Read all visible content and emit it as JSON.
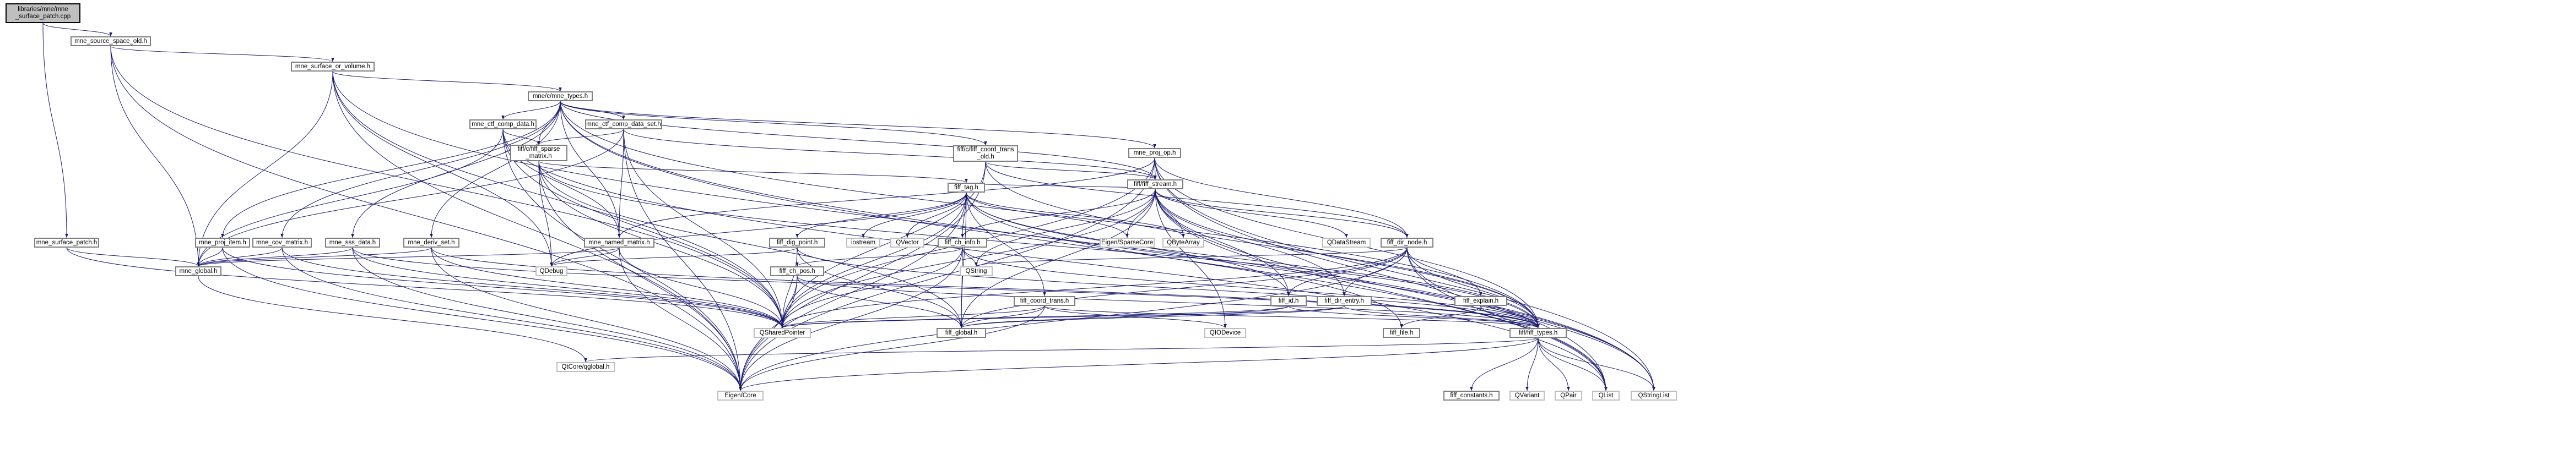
{
  "nodes": {
    "root": {
      "label": "libraries/mne/mne\n_surface_patch.cpp",
      "link": false
    },
    "srcSpace": {
      "label": "mne_source_space_old.h",
      "link": true
    },
    "surfVol": {
      "label": "mne_surface_or_volume.h",
      "link": true
    },
    "mneTypes": {
      "label": "mne/c/mne_types.h",
      "link": true
    },
    "surfPatch": {
      "label": "mne_surface_patch.h",
      "link": true
    },
    "ctfCompData": {
      "label": "mne_ctf_comp_data.h",
      "link": true
    },
    "ctfCompSet": {
      "label": "mne_ctf_comp_data_set.h",
      "link": true
    },
    "coordTrans": {
      "label": "fiff/c/fiff_coord_trans\n_old.h",
      "link": true
    },
    "projOp": {
      "label": "mne_proj_op.h",
      "link": true
    },
    "sparseMatrix": {
      "label": "fiff/c/fiff_sparse\n_matrix.h",
      "link": true
    },
    "fiffStream": {
      "label": "fiff/fiff_stream.h",
      "link": true
    },
    "fiffTag": {
      "label": "fiff_tag.h",
      "link": true
    },
    "projItem": {
      "label": "mne_proj_item.h",
      "link": true
    },
    "covMatrix": {
      "label": "mne_cov_matrix.h",
      "link": true
    },
    "sssData": {
      "label": "mne_sss_data.h",
      "link": true
    },
    "derivSet": {
      "label": "mne_deriv_set.h",
      "link": true
    },
    "namedMatrix": {
      "label": "mne_named_matrix.h",
      "link": true
    },
    "digPoint": {
      "label": "fiff_dig_point.h",
      "link": true
    },
    "iostream": {
      "label": "iostream",
      "link": false
    },
    "qvector": {
      "label": "QVector",
      "link": false
    },
    "chInfo": {
      "label": "fiff_ch_info.h",
      "link": true
    },
    "coordTrans2": {
      "label": "fiff_coord_trans.h",
      "link": true
    },
    "eigenSparse": {
      "label": "Eigen/SparseCore",
      "link": false
    },
    "qbytearray": {
      "label": "QByteArray",
      "link": false
    },
    "qdatastream": {
      "label": "QDataStream",
      "link": false
    },
    "dirNode": {
      "label": "fiff_dir_node.h",
      "link": true
    },
    "mneGlobal": {
      "label": "mne_global.h",
      "link": true
    },
    "qdebug": {
      "label": "QDebug",
      "link": false
    },
    "chPos": {
      "label": "fiff_ch_pos.h",
      "link": true
    },
    "qstring": {
      "label": "QString",
      "link": false
    },
    "fiffId": {
      "label": "fiff_id.h",
      "link": true
    },
    "dirEntry": {
      "label": "fiff_dir_entry.h",
      "link": true
    },
    "explain": {
      "label": "fiff_explain.h",
      "link": true
    },
    "qshared": {
      "label": "QSharedPointer",
      "link": false
    },
    "fiffGlobal": {
      "label": "fiff_global.h",
      "link": true
    },
    "qiodevice": {
      "label": "QIODevice",
      "link": false
    },
    "fiffFile": {
      "label": "fiff_file.h",
      "link": true
    },
    "fiffTypes": {
      "label": "fiff/fiff_types.h",
      "link": true
    },
    "qtconfig": {
      "label": "QtCore/qglobal.h",
      "link": false
    },
    "eigenCore": {
      "label": "Eigen/Core",
      "link": false
    },
    "constants": {
      "label": "fiff_constants.h",
      "link": true
    },
    "qvariant": {
      "label": "QVariant",
      "link": false
    },
    "qpair": {
      "label": "QPair",
      "link": false
    },
    "qlist": {
      "label": "QList",
      "link": false
    },
    "qstringlist": {
      "label": "QStringList",
      "link": false
    }
  },
  "edge_color": "#191970",
  "edges": [
    [
      "root",
      "srcSpace"
    ],
    [
      "root",
      "surfPatch"
    ],
    [
      "srcSpace",
      "surfVol"
    ],
    [
      "srcSpace",
      "mneGlobal"
    ],
    [
      "srcSpace",
      "qshared"
    ],
    [
      "srcSpace",
      "eigenCore"
    ],
    [
      "surfVol",
      "mneTypes"
    ],
    [
      "surfVol",
      "mneGlobal"
    ],
    [
      "surfVol",
      "qdebug"
    ],
    [
      "surfVol",
      "qshared"
    ],
    [
      "surfVol",
      "eigenCore"
    ],
    [
      "surfVol",
      "qstringlist"
    ],
    [
      "mneTypes",
      "ctfCompData"
    ],
    [
      "mneTypes",
      "ctfCompSet"
    ],
    [
      "mneTypes",
      "coordTrans"
    ],
    [
      "mneTypes",
      "projOp"
    ],
    [
      "mneTypes",
      "sparseMatrix"
    ],
    [
      "mneTypes",
      "fiffStream"
    ],
    [
      "mneTypes",
      "projItem"
    ],
    [
      "mneTypes",
      "covMatrix"
    ],
    [
      "mneTypes",
      "sssData"
    ],
    [
      "mneTypes",
      "derivSet"
    ],
    [
      "mneTypes",
      "namedMatrix"
    ],
    [
      "mneTypes",
      "fiffTypes"
    ],
    [
      "mneTypes",
      "qlist"
    ],
    [
      "mneTypes",
      "qstringlist"
    ],
    [
      "surfPatch",
      "mneGlobal"
    ],
    [
      "surfPatch",
      "qshared"
    ],
    [
      "ctfCompData",
      "sparseMatrix"
    ],
    [
      "ctfCompData",
      "namedMatrix"
    ],
    [
      "ctfCompData",
      "mneGlobal"
    ],
    [
      "ctfCompData",
      "qshared"
    ],
    [
      "ctfCompData",
      "eigenCore"
    ],
    [
      "ctfCompData",
      "qlist"
    ],
    [
      "ctfCompSet",
      "sparseMatrix"
    ],
    [
      "ctfCompSet",
      "namedMatrix"
    ],
    [
      "ctfCompSet",
      "fiffStream"
    ],
    [
      "ctfCompSet",
      "mneGlobal"
    ],
    [
      "ctfCompSet",
      "qshared"
    ],
    [
      "ctfCompSet",
      "eigenCore"
    ],
    [
      "coordTrans",
      "fiffStream"
    ],
    [
      "coordTrans",
      "fiffTypes"
    ],
    [
      "coordTrans",
      "qshared"
    ],
    [
      "coordTrans",
      "eigenCore"
    ],
    [
      "coordTrans",
      "dirNode"
    ],
    [
      "projOp",
      "fiffStream"
    ],
    [
      "projOp",
      "namedMatrix"
    ],
    [
      "projOp",
      "fiffTypes"
    ],
    [
      "projOp",
      "qshared"
    ],
    [
      "projOp",
      "eigenCore"
    ],
    [
      "projOp",
      "qlist"
    ],
    [
      "projOp",
      "qstringlist"
    ],
    [
      "projOp",
      "dirNode"
    ],
    [
      "sparseMatrix",
      "fiffTag"
    ],
    [
      "sparseMatrix",
      "fiffTypes"
    ],
    [
      "sparseMatrix",
      "qdebug"
    ],
    [
      "sparseMatrix",
      "qshared"
    ],
    [
      "sparseMatrix",
      "eigenCore"
    ],
    [
      "sparseMatrix",
      "fiffGlobal"
    ],
    [
      "fiffStream",
      "fiffTag"
    ],
    [
      "fiffStream",
      "dirNode"
    ],
    [
      "fiffStream",
      "qdatastream"
    ],
    [
      "fiffStream",
      "qbytearray"
    ],
    [
      "fiffStream",
      "fiffId"
    ],
    [
      "fiffStream",
      "dirEntry"
    ],
    [
      "fiffStream",
      "fiffTypes"
    ],
    [
      "fiffStream",
      "qshared"
    ],
    [
      "fiffStream",
      "qiodevice"
    ],
    [
      "fiffStream",
      "qlist"
    ],
    [
      "fiffStream",
      "qstringlist"
    ],
    [
      "fiffStream",
      "qstring"
    ],
    [
      "fiffStream",
      "fiffGlobal"
    ],
    [
      "fiffStream",
      "eigenSparse"
    ],
    [
      "fiffStream",
      "chInfo"
    ],
    [
      "fiffTag",
      "digPoint"
    ],
    [
      "fiffTag",
      "iostream"
    ],
    [
      "fiffTag",
      "qvector"
    ],
    [
      "fiffTag",
      "chInfo"
    ],
    [
      "fiffTag",
      "coordTrans2"
    ],
    [
      "fiffTag",
      "eigenSparse"
    ],
    [
      "fiffTag",
      "qbytearray"
    ],
    [
      "fiffTag",
      "fiffId"
    ],
    [
      "fiffTag",
      "fiffTypes"
    ],
    [
      "fiffTag",
      "qshared"
    ],
    [
      "fiffTag",
      "fiffGlobal"
    ],
    [
      "fiffTag",
      "fiffFile"
    ],
    [
      "fiffTag",
      "qdebug"
    ],
    [
      "fiffTag",
      "eigenCore"
    ],
    [
      "projItem",
      "mneGlobal"
    ],
    [
      "projItem",
      "qshared"
    ],
    [
      "projItem",
      "eigenCore"
    ],
    [
      "covMatrix",
      "mneGlobal"
    ],
    [
      "covMatrix",
      "qshared"
    ],
    [
      "covMatrix",
      "eigenCore"
    ],
    [
      "sssData",
      "mneGlobal"
    ],
    [
      "sssData",
      "qshared"
    ],
    [
      "sssData",
      "eigenCore"
    ],
    [
      "sssData",
      "fiffTypes"
    ],
    [
      "derivSet",
      "mneGlobal"
    ],
    [
      "derivSet",
      "qshared"
    ],
    [
      "derivSet",
      "eigenCore"
    ],
    [
      "derivSet",
      "fiffTypes"
    ],
    [
      "namedMatrix",
      "mneGlobal"
    ],
    [
      "namedMatrix",
      "qdebug"
    ],
    [
      "namedMatrix",
      "qshared"
    ],
    [
      "namedMatrix",
      "eigenCore"
    ],
    [
      "digPoint",
      "fiffGlobal"
    ],
    [
      "digPoint",
      "fiffTypes"
    ],
    [
      "digPoint",
      "qshared"
    ],
    [
      "digPoint",
      "qdebug"
    ],
    [
      "chInfo",
      "chPos"
    ],
    [
      "chInfo",
      "qstring"
    ],
    [
      "chInfo",
      "fiffGlobal"
    ],
    [
      "chInfo",
      "fiffTypes"
    ],
    [
      "chInfo",
      "qshared"
    ],
    [
      "chInfo",
      "eigenCore"
    ],
    [
      "coordTrans2",
      "fiffGlobal"
    ],
    [
      "coordTrans2",
      "fiffTypes"
    ],
    [
      "coordTrans2",
      "qshared"
    ],
    [
      "coordTrans2",
      "eigenCore"
    ],
    [
      "coordTrans2",
      "qiodevice"
    ],
    [
      "dirNode",
      "fiffId"
    ],
    [
      "dirNode",
      "dirEntry"
    ],
    [
      "dirNode",
      "explain"
    ],
    [
      "dirNode",
      "fiffTypes"
    ],
    [
      "dirNode",
      "fiffGlobal"
    ],
    [
      "dirNode",
      "qshared"
    ],
    [
      "dirNode",
      "qlist"
    ],
    [
      "dirNode",
      "qstringlist"
    ],
    [
      "dirNode",
      "eigenCore"
    ],
    [
      "dirNode",
      "qstring"
    ],
    [
      "mneGlobal",
      "qtconfig"
    ],
    [
      "chPos",
      "fiffGlobal"
    ],
    [
      "chPos",
      "fiffTypes"
    ],
    [
      "chPos",
      "qshared"
    ],
    [
      "chPos",
      "eigenCore"
    ],
    [
      "fiffId",
      "fiffGlobal"
    ],
    [
      "fiffId",
      "fiffTypes"
    ],
    [
      "fiffId",
      "qshared"
    ],
    [
      "dirEntry",
      "fiffGlobal"
    ],
    [
      "dirEntry",
      "fiffTypes"
    ],
    [
      "dirEntry",
      "qshared"
    ],
    [
      "explain",
      "fiffTypes"
    ],
    [
      "explain",
      "fiffFile"
    ],
    [
      "fiffTypes",
      "constants"
    ],
    [
      "fiffTypes",
      "qvariant"
    ],
    [
      "fiffTypes",
      "qpair"
    ],
    [
      "fiffTypes",
      "qlist"
    ],
    [
      "fiffTypes",
      "qstringlist"
    ],
    [
      "fiffTypes",
      "eigenCore"
    ],
    [
      "fiffTypes",
      "qtconfig"
    ]
  ]
}
